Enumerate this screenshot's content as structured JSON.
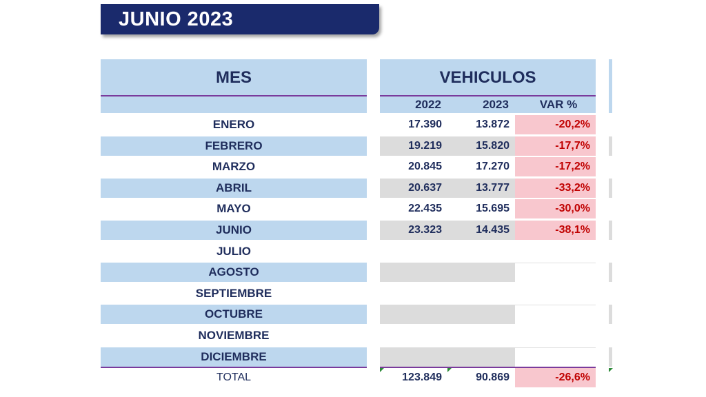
{
  "banner": {
    "title": "JUNIO 2023"
  },
  "table": {
    "header_month": "MES",
    "header_group": "VEHICULOS",
    "sub_headers": [
      "2022",
      "2023",
      "VAR %"
    ],
    "rows": [
      {
        "month": "ENERO",
        "v2022": "17.390",
        "v2023": "13.872",
        "var": "-20,2%"
      },
      {
        "month": "FEBRERO",
        "v2022": "19.219",
        "v2023": "15.820",
        "var": "-17,7%"
      },
      {
        "month": "MARZO",
        "v2022": "20.845",
        "v2023": "17.270",
        "var": "-17,2%"
      },
      {
        "month": "ABRIL",
        "v2022": "20.637",
        "v2023": "13.777",
        "var": "-33,2%"
      },
      {
        "month": "MAYO",
        "v2022": "22.435",
        "v2023": "15.695",
        "var": "-30,0%"
      },
      {
        "month": "JUNIO",
        "v2022": "23.323",
        "v2023": "14.435",
        "var": "-38,1%"
      },
      {
        "month": "JULIO",
        "v2022": "",
        "v2023": "",
        "var": ""
      },
      {
        "month": "AGOSTO",
        "v2022": "",
        "v2023": "",
        "var": ""
      },
      {
        "month": "SEPTIEMBRE",
        "v2022": "",
        "v2023": "",
        "var": ""
      },
      {
        "month": "OCTUBRE",
        "v2022": "",
        "v2023": "",
        "var": ""
      },
      {
        "month": "NOVIEMBRE",
        "v2022": "",
        "v2023": "",
        "var": ""
      },
      {
        "month": "DICIEMBRE",
        "v2022": "",
        "v2023": "",
        "var": ""
      }
    ],
    "total": {
      "label": "TOTAL",
      "v2022": "123.849",
      "v2023": "90.869",
      "var": "-26,6%"
    }
  },
  "colors": {
    "banner_bg": "#1a2a6c",
    "header_bg": "#bdd7ee",
    "text": "#1f2d5c",
    "negative": "#c00000",
    "var_fill": "#f8c7ce",
    "grey_fill": "#dcdcdc",
    "divider": "#7a3b9c"
  }
}
